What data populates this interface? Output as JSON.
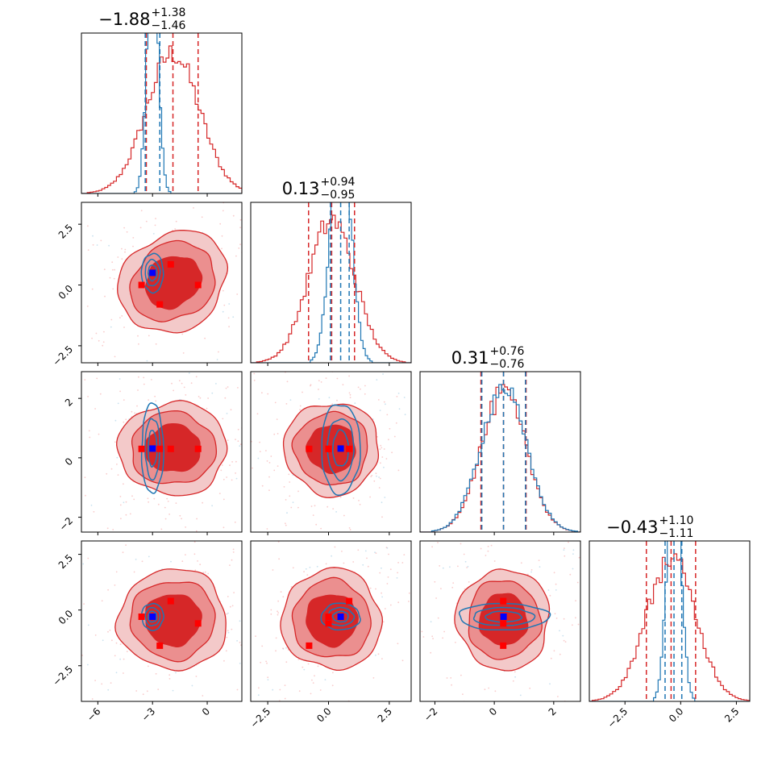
{
  "chart_data": {
    "type": "corner",
    "colors": {
      "posterior_a": "#d62728",
      "posterior_b": "#1f77b4",
      "markers_a": "#ff0000",
      "marker_b": "#0000ff",
      "contour_fill_outer": "#f3c9c9",
      "contour_fill_mid": "#eb8f8f",
      "contour_fill_inner": "#d62728"
    },
    "parameters": [
      {
        "title_main": "−1.88",
        "title_plus": "+1.38",
        "title_minus": "−1.46",
        "range": [
          -6.9,
          1.9
        ],
        "ticks": [
          -6,
          -3,
          0
        ],
        "tick_labels": [
          "−6",
          "−3",
          "0"
        ],
        "quantiles_a": [
          -3.34,
          -1.88,
          -0.5
        ],
        "quantiles_b": [
          -3.4,
          -2.6,
          -2.6
        ],
        "hist_a": {
          "mean": -1.88,
          "sd": 1.45
        },
        "hist_b": {
          "mean": -3.0,
          "sd": 0.3
        }
      },
      {
        "title_main": "0.13",
        "title_plus": "+0.94",
        "title_minus": "−0.95",
        "range": [
          -3.2,
          3.4
        ],
        "ticks": [
          -2.5,
          0.0,
          2.5
        ],
        "tick_labels": [
          "−2.5",
          "0.0",
          "2.5"
        ],
        "quantiles_a": [
          -0.82,
          0.13,
          1.07
        ],
        "quantiles_b": [
          0.08,
          0.5,
          0.85
        ],
        "hist_a": {
          "mean": 0.13,
          "sd": 0.95
        },
        "hist_b": {
          "mean": 0.5,
          "sd": 0.4
        }
      },
      {
        "title_main": "0.31",
        "title_plus": "+0.76",
        "title_minus": "−0.76",
        "range": [
          -2.5,
          2.9
        ],
        "ticks": [
          -2,
          0,
          2
        ],
        "tick_labels": [
          "−2",
          "0",
          "2"
        ],
        "quantiles_a": [
          -0.45,
          0.31,
          1.07
        ],
        "quantiles_b": [
          -0.42,
          0.31,
          1.05
        ],
        "hist_a": {
          "mean": 0.31,
          "sd": 0.76
        },
        "hist_b": {
          "mean": 0.31,
          "sd": 0.76
        }
      },
      {
        "title_main": "−0.43",
        "title_plus": "+1.10",
        "title_minus": "−1.11",
        "range": [
          -4.1,
          3.1
        ],
        "ticks": [
          -2.5,
          0.0,
          2.5
        ],
        "tick_labels": [
          "−2.5",
          "0.0",
          "2.5"
        ],
        "quantiles_a": [
          -1.54,
          -0.43,
          0.67
        ],
        "quantiles_b": [
          -0.7,
          -0.3,
          0.05
        ],
        "hist_a": {
          "mean": -0.43,
          "sd": 1.1
        },
        "hist_b": {
          "mean": -0.3,
          "sd": 0.3
        }
      }
    ],
    "blue_sd": [
      0.3,
      0.4,
      0.8,
      0.3
    ],
    "blue_center": [
      -3.0,
      0.5,
      0.31,
      -0.3
    ],
    "red_square_points": [
      [
        -3.6,
        0.0,
        0.3,
        -0.3
      ],
      [
        -2.0,
        0.85,
        0.3,
        0.4
      ],
      [
        -2.6,
        -0.8,
        0.3,
        -1.6
      ],
      [
        -0.5,
        0.0,
        0.3,
        -0.6
      ]
    ],
    "blue_square_point": [
      -3.0,
      0.5,
      0.31,
      -0.3
    ]
  }
}
